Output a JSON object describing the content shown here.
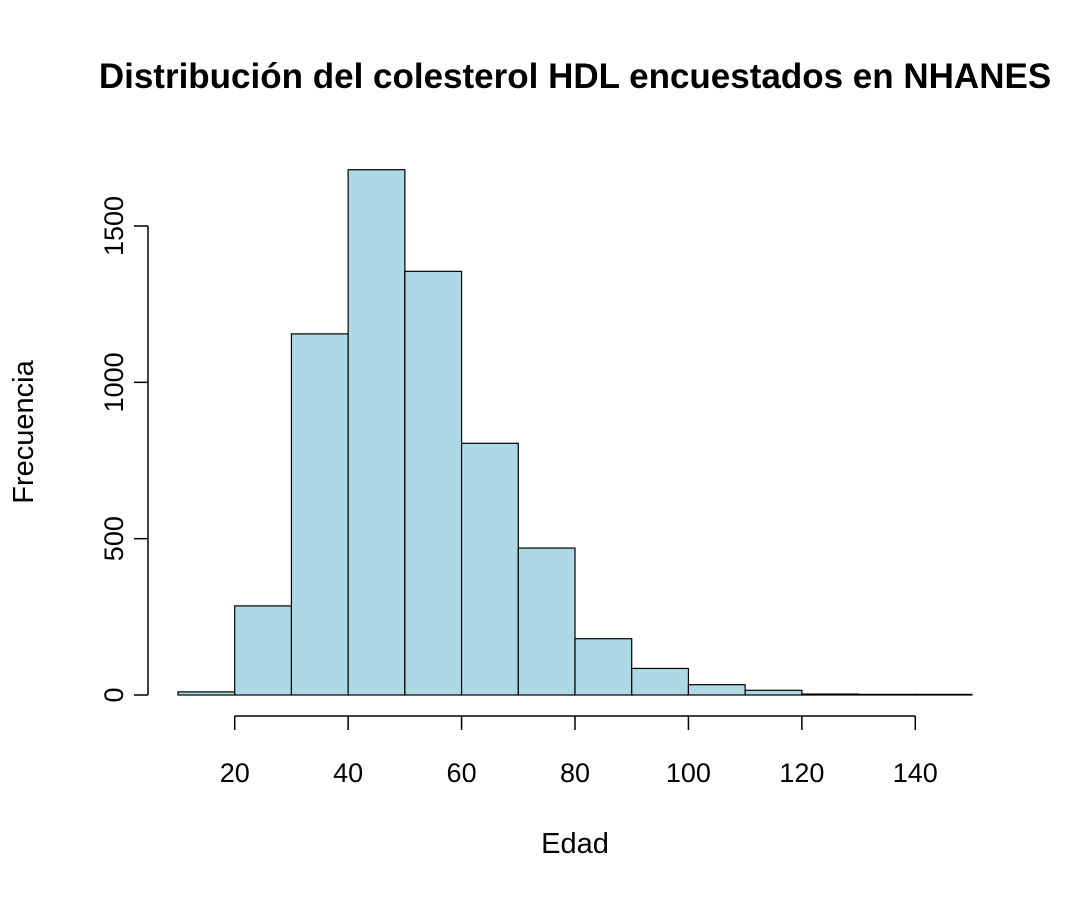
{
  "chart_data": {
    "type": "bar",
    "subtype": "histogram",
    "title": "Distribución del colesterol HDL encuestados en NHANES",
    "xlabel": "Edad",
    "ylabel": "Frecuencia",
    "bins": [
      {
        "x0": 10,
        "x1": 20,
        "count": 10
      },
      {
        "x0": 20,
        "x1": 30,
        "count": 285
      },
      {
        "x0": 30,
        "x1": 40,
        "count": 1155
      },
      {
        "x0": 40,
        "x1": 50,
        "count": 1680
      },
      {
        "x0": 50,
        "x1": 60,
        "count": 1355
      },
      {
        "x0": 60,
        "x1": 70,
        "count": 805
      },
      {
        "x0": 70,
        "x1": 80,
        "count": 470
      },
      {
        "x0": 80,
        "x1": 90,
        "count": 180
      },
      {
        "x0": 90,
        "x1": 100,
        "count": 85
      },
      {
        "x0": 100,
        "x1": 110,
        "count": 33
      },
      {
        "x0": 110,
        "x1": 120,
        "count": 15
      },
      {
        "x0": 120,
        "x1": 130,
        "count": 3
      },
      {
        "x0": 130,
        "x1": 140,
        "count": 2
      },
      {
        "x0": 140,
        "x1": 150,
        "count": 2
      }
    ],
    "xticks": [
      20,
      40,
      60,
      80,
      100,
      120,
      140
    ],
    "yticks": [
      0,
      500,
      1000,
      1500
    ],
    "xlim": [
      10,
      150
    ],
    "ylim": [
      0,
      1680
    ],
    "bar_color": "#add8e6",
    "grid": false,
    "legend": "none"
  }
}
